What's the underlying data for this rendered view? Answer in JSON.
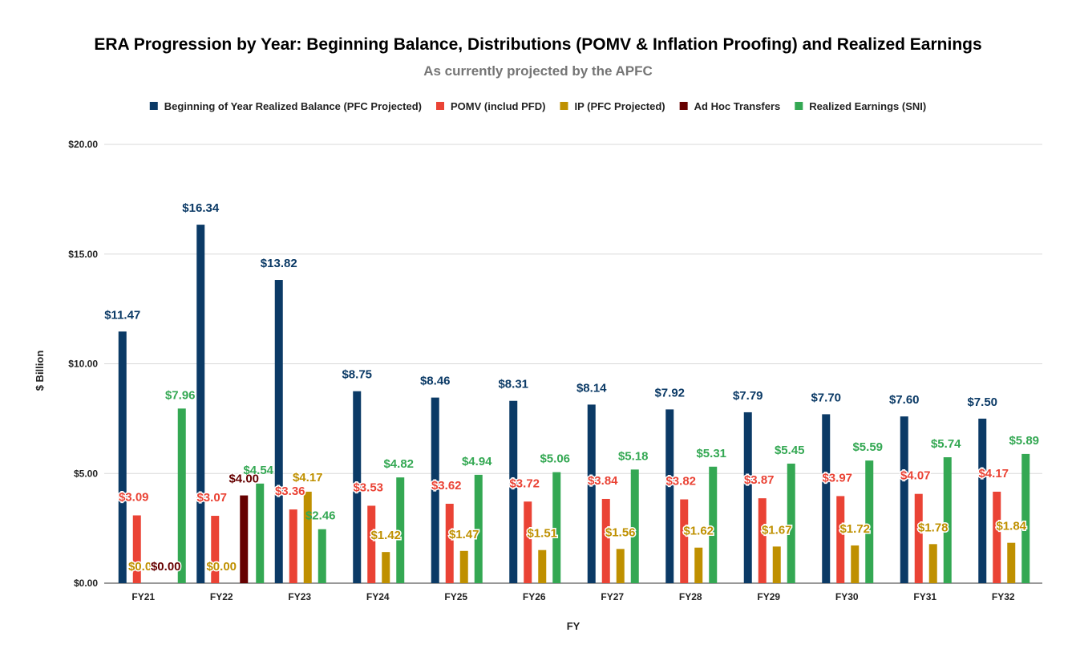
{
  "chart_data": {
    "type": "bar",
    "title": "ERA Progression by Year: Beginning Balance, Distributions (POMV & Inflation Proofing) and Realized Earnings",
    "subtitle": "As currently projected by the APFC",
    "xlabel": "FY",
    "ylabel": "$ Billion",
    "ylim": [
      0,
      20
    ],
    "yticks": [
      0,
      5,
      10,
      15,
      20
    ],
    "ytick_labels": [
      "$0.00",
      "$5.00",
      "$10.00",
      "$15.00",
      "$20.00"
    ],
    "grid": true,
    "legend_position": "top",
    "categories": [
      "FY21",
      "FY22",
      "FY23",
      "FY24",
      "FY25",
      "FY26",
      "FY27",
      "FY28",
      "FY29",
      "FY30",
      "FY31",
      "FY32"
    ],
    "series": [
      {
        "name": "Beginning of Year Realized Balance (PFC Projected)",
        "color": "#0b3a66",
        "values": [
          11.47,
          16.34,
          13.82,
          8.75,
          8.46,
          8.31,
          8.14,
          7.92,
          7.79,
          7.7,
          7.6,
          7.5
        ],
        "labels": [
          "$11.47",
          "$16.34",
          "$13.82",
          "$8.75",
          "$8.46",
          "$8.31",
          "$8.14",
          "$7.92",
          "$7.79",
          "$7.70",
          "$7.60",
          "$7.50"
        ]
      },
      {
        "name": "POMV (includ PFD)",
        "color": "#ea4335",
        "values": [
          3.09,
          3.07,
          3.36,
          3.53,
          3.62,
          3.72,
          3.84,
          3.82,
          3.87,
          3.97,
          4.07,
          4.17
        ],
        "labels": [
          "$3.09",
          "$3.07",
          "$3.36",
          "$3.53",
          "$3.62",
          "$3.72",
          "$3.84",
          "$3.82",
          "$3.87",
          "$3.97",
          "$4.07",
          "$4.17"
        ]
      },
      {
        "name": "IP (PFC Projected)",
        "color": "#bf9000",
        "values": [
          0.0,
          0.0,
          4.17,
          1.42,
          1.47,
          1.51,
          1.56,
          1.62,
          1.67,
          1.72,
          1.78,
          1.84
        ],
        "labels": [
          "$0.00",
          "$0.00",
          "$4.17",
          "$1.42",
          "$1.47",
          "$1.51",
          "$1.56",
          "$1.62",
          "$1.67",
          "$1.72",
          "$1.78",
          "$1.84"
        ]
      },
      {
        "name": "Ad Hoc Transfers",
        "color": "#660000",
        "values": [
          0.0,
          4.0,
          null,
          null,
          null,
          null,
          null,
          null,
          null,
          null,
          null,
          null
        ],
        "labels": [
          "$0.00",
          "$4.00",
          "",
          "",
          "",
          "",
          "",
          "",
          "",
          "",
          "",
          ""
        ]
      },
      {
        "name": "Realized Earnings (SNI)",
        "color": "#34a853",
        "values": [
          7.96,
          4.54,
          2.46,
          4.82,
          4.94,
          5.06,
          5.18,
          5.31,
          5.45,
          5.59,
          5.74,
          5.89
        ],
        "labels": [
          "$7.96",
          "$4.54",
          "$2.46",
          "$4.82",
          "$4.94",
          "$5.06",
          "$5.18",
          "$5.31",
          "$5.45",
          "$5.59",
          "$5.74",
          "$5.89"
        ]
      }
    ]
  }
}
